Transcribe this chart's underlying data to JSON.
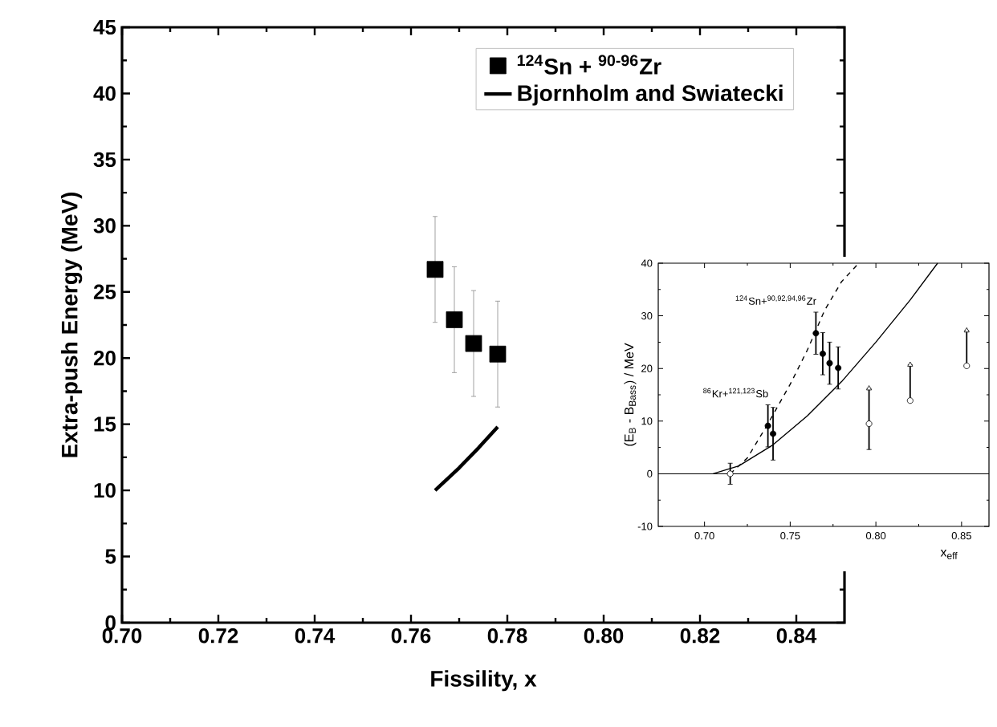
{
  "chart_data": [
    {
      "type": "scatter",
      "xlabel": "Fissility, x",
      "ylabel": "Extra-push Energy (MeV)",
      "xlim": [
        0.7,
        0.85
      ],
      "ylim": [
        0,
        45
      ],
      "xticks": [
        {
          "value": 0.7,
          "label": "0.70"
        },
        {
          "value": 0.72,
          "label": "0.72"
        },
        {
          "value": 0.74,
          "label": "0.74"
        },
        {
          "value": 0.76,
          "label": "0.76"
        },
        {
          "value": 0.78,
          "label": "0.78"
        },
        {
          "value": 0.8,
          "label": "0.80"
        },
        {
          "value": 0.82,
          "label": "0.82"
        },
        {
          "value": 0.84,
          "label": "0.84"
        }
      ],
      "yticks": [
        0,
        5,
        10,
        15,
        20,
        25,
        30,
        35,
        40,
        45
      ],
      "legend": "top right",
      "series": [
        {
          "name": "$^{124}$Sn + $^{90-96}$Zr",
          "color": "#000000",
          "marker": "square",
          "x": [
            0.765,
            0.769,
            0.773,
            0.778
          ],
          "values": [
            26.7,
            22.9,
            21.1,
            20.3
          ],
          "errors": [
            4,
            4,
            4,
            4
          ]
        },
        {
          "name": "Bjornholm and Swiatecki",
          "type": "line",
          "color": "#000000",
          "marker": "none",
          "x": [
            0.765,
            0.77,
            0.774,
            0.778
          ],
          "values": [
            10.0,
            11.7,
            13.2,
            14.8
          ]
        }
      ]
    },
    {
      "type": "scatter",
      "xlabel": "x$_{eff}$",
      "ylabel": "(E$_{B}$ - B$_{Bass}$)  / MeV",
      "xlim": [
        0.673,
        0.866
      ],
      "ylim": [
        -10,
        40
      ],
      "xticks": [
        {
          "value": 0.7,
          "label": "0.70"
        },
        {
          "value": 0.75,
          "label": "0.75"
        },
        {
          "value": 0.8,
          "label": "0.80"
        },
        {
          "value": 0.85,
          "label": "0.85"
        }
      ],
      "yticks": [
        -10,
        0,
        10,
        20,
        30,
        40
      ],
      "ref_lines": [
        {
          "axis": "y",
          "value": 0
        }
      ],
      "annotations": [
        {
          "text": "$^{124}$Sn+$^{90,92,94,96}$Zr",
          "x": 0.765,
          "y": 26.7
        },
        {
          "text": "$^{86}$Kr+$^{121,123}$Sb",
          "x": 0.737,
          "y": 9.1
        }
      ],
      "series": [
        {
          "color": "#000000",
          "marker": "circle",
          "x": [
            0.737,
            0.74,
            0.765,
            0.769,
            0.773,
            0.778
          ],
          "values": [
            9.1,
            7.6,
            26.7,
            22.8,
            21.0,
            20.1
          ],
          "errors": [
            4,
            5,
            4,
            4,
            4,
            4
          ]
        },
        {
          "color": "#ffffff",
          "marker": "circle",
          "x": [
            0.715,
            0.796,
            0.82,
            0.853
          ],
          "values": [
            0,
            9.5,
            13.9,
            20.5
          ],
          "errors": [
            2,
            [
              4.6,
              16.2
            ],
            [
              13.9,
              20.7
            ],
            [
              20.5,
              27.2
            ]
          ]
        },
        {
          "color": "#ffffff",
          "marker": "triangle",
          "x": [
            0.796,
            0.82,
            0.853
          ],
          "values": [
            16.2,
            20.7,
            27.2
          ]
        },
        {
          "type": "line",
          "line_style": "dashed",
          "color": "#000000",
          "marker": "none",
          "x": [
            0.715,
            0.725,
            0.737,
            0.75,
            0.76,
            0.77,
            0.78,
            0.79
          ],
          "values": [
            0,
            3,
            9.5,
            17,
            23.5,
            31,
            36.5,
            40
          ]
        },
        {
          "type": "line",
          "line_style": "solid",
          "color": "#000000",
          "marker": "none",
          "x": [
            0.705,
            0.72,
            0.74,
            0.76,
            0.78,
            0.8,
            0.82,
            0.836
          ],
          "values": [
            0,
            1.5,
            5.5,
            11,
            17.5,
            25,
            33,
            40
          ]
        }
      ]
    }
  ]
}
